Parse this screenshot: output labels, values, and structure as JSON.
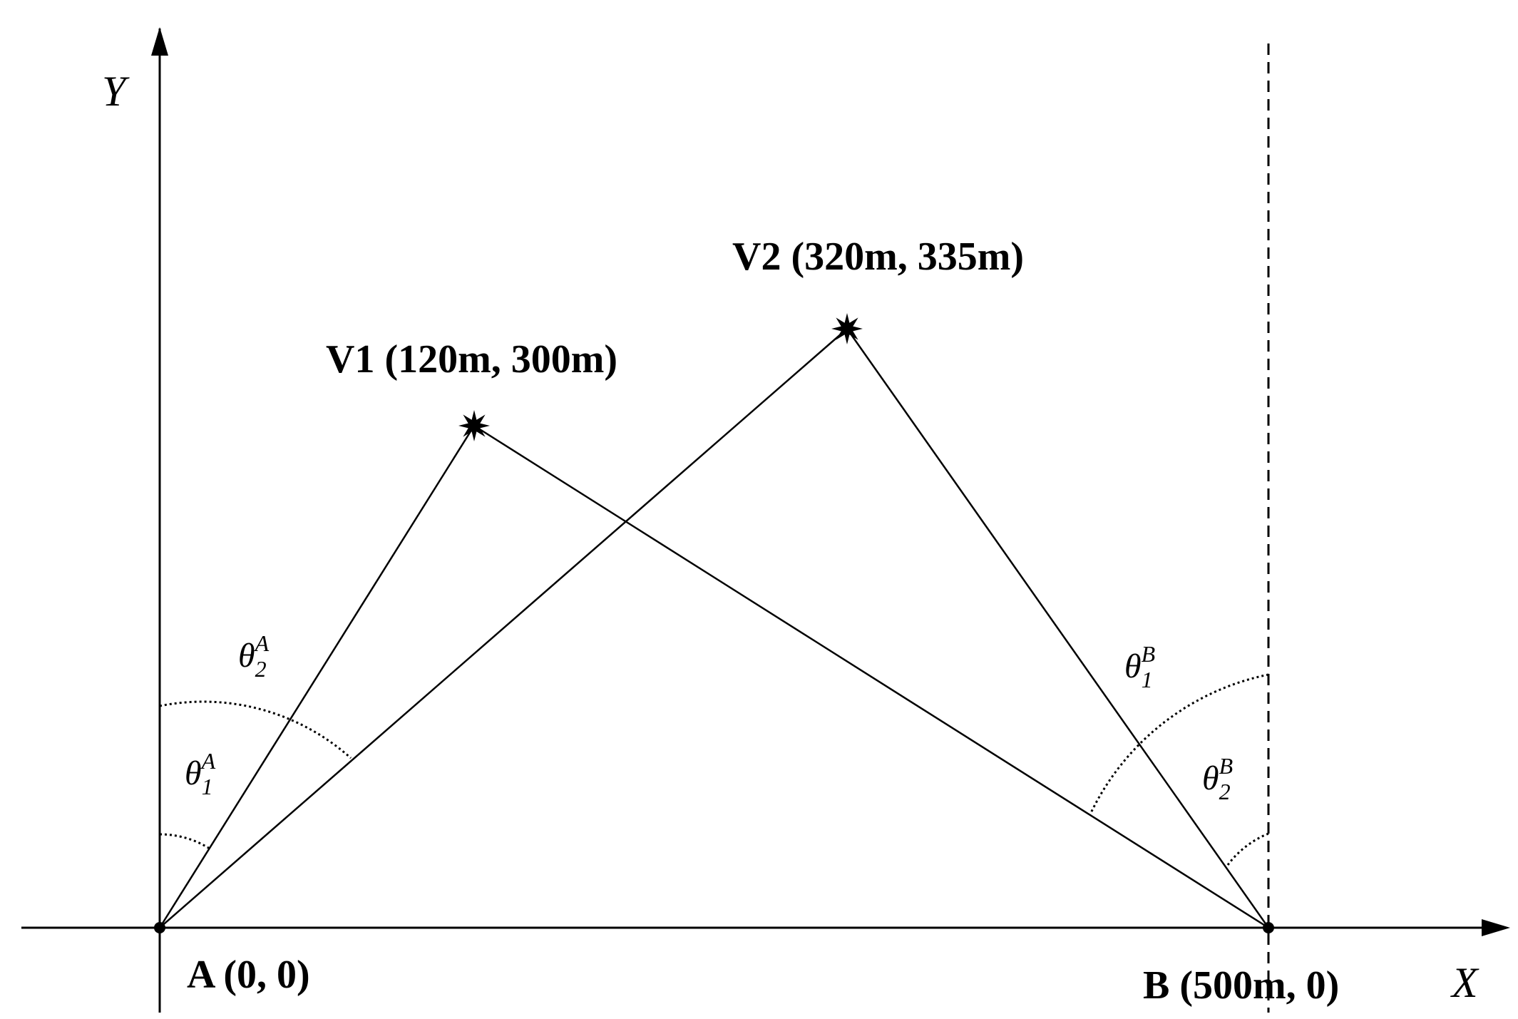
{
  "axes": {
    "x_label": "X",
    "y_label": "Y"
  },
  "points": [
    {
      "label": "A (0, 0)"
    },
    {
      "label": "B (500m, 0)"
    },
    {
      "label": "V1 (120m, 300m)"
    },
    {
      "label": "V2 (320m, 335m)"
    }
  ],
  "angles": [
    {
      "symbol": "θ",
      "sub": "2",
      "sup": "A"
    },
    {
      "symbol": "θ",
      "sub": "1",
      "sup": "A"
    },
    {
      "symbol": "θ",
      "sub": "1",
      "sup": "B"
    },
    {
      "symbol": "θ",
      "sub": "2",
      "sup": "B"
    }
  ]
}
